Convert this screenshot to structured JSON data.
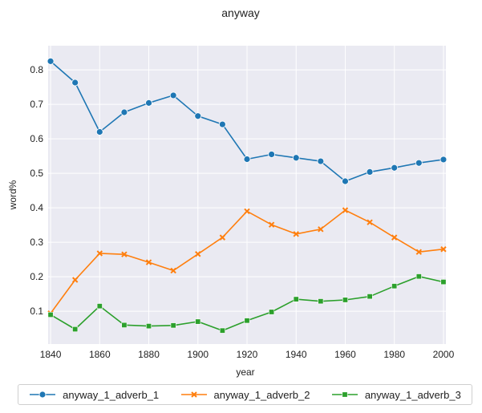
{
  "chart_data": {
    "type": "line",
    "title": "anyway",
    "xlabel": "year",
    "ylabel": "word%",
    "xlim": [
      1839,
      2001
    ],
    "ylim": [
      0.005,
      0.87
    ],
    "xticks": [
      "1840",
      "1860",
      "1880",
      "1900",
      "1920",
      "1940",
      "1960",
      "1980",
      "2000"
    ],
    "yticks": [
      "0.1",
      "0.2",
      "0.3",
      "0.4",
      "0.5",
      "0.6",
      "0.7",
      "0.8"
    ],
    "grid": true,
    "legend_position": "bottom",
    "x": [
      1840,
      1850,
      1860,
      1870,
      1880,
      1890,
      1900,
      1910,
      1920,
      1930,
      1940,
      1950,
      1960,
      1970,
      1980,
      1990,
      2000
    ],
    "series": [
      {
        "name": "anyway_1_adverb_1",
        "color": "#1f77b4",
        "marker": "circle",
        "values": [
          0.825,
          0.763,
          0.62,
          0.677,
          0.704,
          0.726,
          0.666,
          0.642,
          0.541,
          0.555,
          0.545,
          0.535,
          0.477,
          0.504,
          0.516,
          0.53,
          0.54
        ]
      },
      {
        "name": "anyway_1_adverb_2",
        "color": "#ff7f0e",
        "marker": "x",
        "values": [
          0.094,
          0.191,
          0.268,
          0.265,
          0.242,
          0.218,
          0.266,
          0.314,
          0.39,
          0.351,
          0.324,
          0.338,
          0.393,
          0.358,
          0.314,
          0.272,
          0.28
        ]
      },
      {
        "name": "anyway_1_adverb_3",
        "color": "#2ca02c",
        "marker": "square",
        "values": [
          0.09,
          0.048,
          0.115,
          0.06,
          0.057,
          0.059,
          0.07,
          0.044,
          0.073,
          0.098,
          0.135,
          0.129,
          0.133,
          0.143,
          0.173,
          0.201,
          0.185
        ]
      }
    ]
  }
}
